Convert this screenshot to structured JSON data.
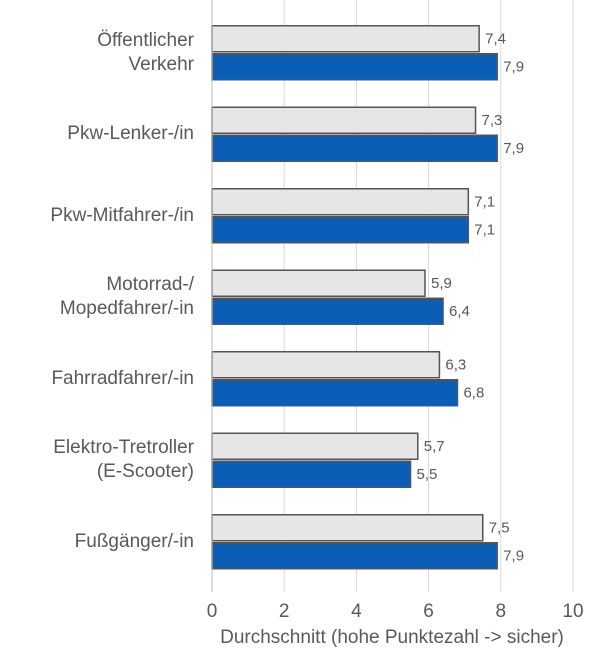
{
  "chart_data": {
    "type": "bar",
    "orientation": "horizontal",
    "x_label": "Durchschnitt (hohe Punktezahl -> sicher)",
    "categories": [
      "Öffentlicher\nVerkehr",
      "Pkw-Lenker-/in",
      "Pkw-Mitfahrer-/in",
      "Motorrad-/\nMopedfahrer/-in",
      "Fahrradfahrer/-in",
      "Elektro-Tretroller\n(E-Scooter)",
      "Fußgänger/-in"
    ],
    "series": [
      {
        "color": "#e6e6e6",
        "values": [
          7.4,
          7.3,
          7.1,
          5.9,
          6.3,
          5.7,
          7.5
        ],
        "value_labels": [
          "7,4",
          "7,3",
          "7,1",
          "5,9",
          "6,3",
          "5,7",
          "7,5"
        ]
      },
      {
        "color": "#0a5eb5",
        "values": [
          7.9,
          7.9,
          7.1,
          6.4,
          6.8,
          5.5,
          7.9
        ],
        "value_labels": [
          "7,9",
          "7,9",
          "7,1",
          "6,4",
          "6,8",
          "5,5",
          "7,9"
        ]
      }
    ],
    "xlim": [
      0,
      10
    ],
    "xticks": [
      0,
      2,
      4,
      6,
      8,
      10
    ],
    "grid": true
  }
}
